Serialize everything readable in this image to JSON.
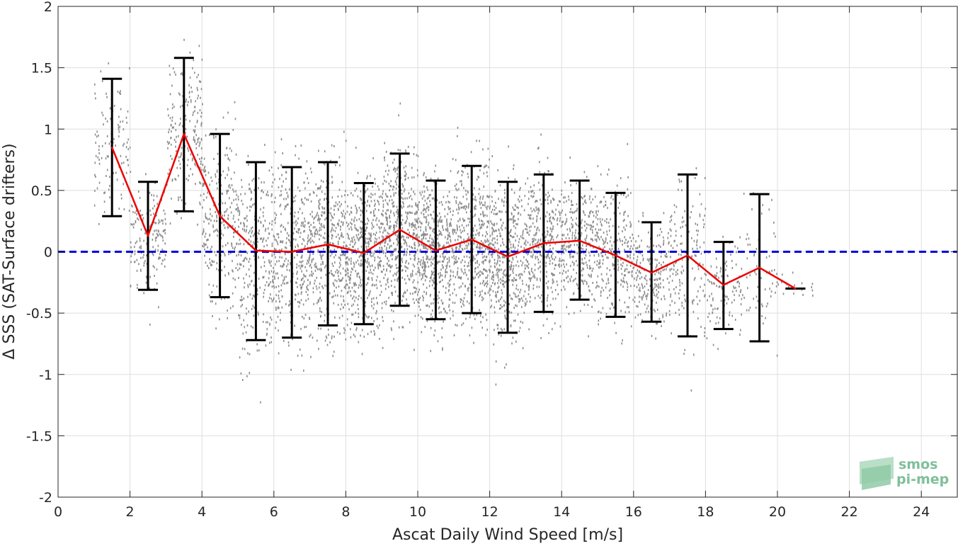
{
  "chart_data": {
    "type": "scatter",
    "xlabel": "Ascat Daily Wind Speed [m/s]",
    "ylabel": "Δ SSS (SAT-Surface drifters)",
    "xlim": [
      0,
      25
    ],
    "ylim": [
      -2,
      2
    ],
    "x_ticks": [
      0,
      2,
      4,
      6,
      8,
      10,
      12,
      14,
      16,
      18,
      20,
      22,
      24
    ],
    "x_tick_labels": [
      "0",
      "2",
      "4",
      "6",
      "8",
      "10",
      "12",
      "14",
      "16",
      "18",
      "20",
      "22",
      "24"
    ],
    "y_ticks": [
      -2,
      -1.5,
      -1,
      -0.5,
      0,
      0.5,
      1,
      1.5,
      2
    ],
    "y_tick_labels": [
      "-2",
      "-1.5",
      "-1",
      "-0.5",
      "0",
      "0.5",
      "1",
      "1.5",
      "2"
    ],
    "grid": true,
    "reference_line": {
      "y": 0,
      "style": "dashed",
      "color": "#0000dd"
    },
    "scatter_color": "#8c8c8c",
    "mean_line_color": "#ee0000",
    "error_bar_color": "#000000",
    "bins": [
      {
        "x": 1.5,
        "mean": 0.85,
        "upper": 1.41,
        "lower": 0.29
      },
      {
        "x": 2.5,
        "mean": 0.13,
        "upper": 0.57,
        "lower": -0.31
      },
      {
        "x": 3.5,
        "mean": 0.96,
        "upper": 1.58,
        "lower": 0.33
      },
      {
        "x": 4.5,
        "mean": 0.29,
        "upper": 0.96,
        "lower": -0.37
      },
      {
        "x": 5.5,
        "mean": 0.01,
        "upper": 0.73,
        "lower": -0.72
      },
      {
        "x": 6.5,
        "mean": 0.0,
        "upper": 0.69,
        "lower": -0.7
      },
      {
        "x": 7.5,
        "mean": 0.06,
        "upper": 0.73,
        "lower": -0.6
      },
      {
        "x": 8.5,
        "mean": -0.01,
        "upper": 0.56,
        "lower": -0.59
      },
      {
        "x": 9.5,
        "mean": 0.18,
        "upper": 0.8,
        "lower": -0.44
      },
      {
        "x": 10.5,
        "mean": 0.01,
        "upper": 0.58,
        "lower": -0.55
      },
      {
        "x": 11.5,
        "mean": 0.1,
        "upper": 0.7,
        "lower": -0.5
      },
      {
        "x": 12.5,
        "mean": -0.04,
        "upper": 0.57,
        "lower": -0.66
      },
      {
        "x": 13.5,
        "mean": 0.07,
        "upper": 0.63,
        "lower": -0.49
      },
      {
        "x": 14.5,
        "mean": 0.09,
        "upper": 0.58,
        "lower": -0.39
      },
      {
        "x": 15.5,
        "mean": -0.03,
        "upper": 0.48,
        "lower": -0.53
      },
      {
        "x": 16.5,
        "mean": -0.17,
        "upper": 0.24,
        "lower": -0.57
      },
      {
        "x": 17.5,
        "mean": -0.03,
        "upper": 0.63,
        "lower": -0.69
      },
      {
        "x": 18.5,
        "mean": -0.27,
        "upper": 0.08,
        "lower": -0.63
      },
      {
        "x": 19.5,
        "mean": -0.13,
        "upper": 0.47,
        "lower": -0.73
      },
      {
        "x": 20.5,
        "mean": -0.3,
        "upper": -0.3,
        "lower": -0.3
      }
    ]
  },
  "logo": {
    "line1": "smos",
    "line2": "pi-mep"
  }
}
